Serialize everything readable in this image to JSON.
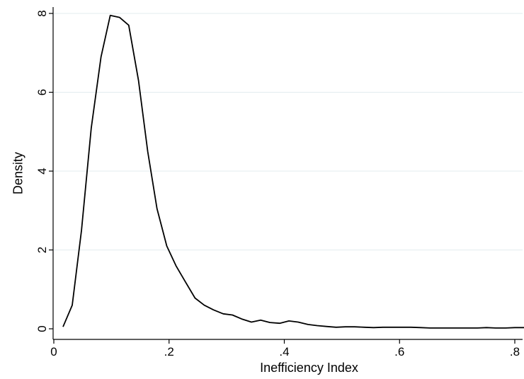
{
  "chart_data": {
    "type": "line",
    "title": "",
    "xlabel": "Inefficiency Index",
    "ylabel": "Density",
    "xlim": [
      0,
      0.82
    ],
    "ylim": [
      0,
      8.2
    ],
    "xticks": [
      0,
      0.2,
      0.4,
      0.6,
      0.8
    ],
    "xtick_labels": [
      "0",
      ".2",
      ".4",
      ".6",
      ".8"
    ],
    "yticks": [
      0,
      2,
      4,
      6,
      8
    ],
    "ytick_labels": [
      "0",
      "2",
      "4",
      "6",
      "8"
    ],
    "grid": "horizontal",
    "legend": "none",
    "colors": {
      "line": "#000000",
      "grid": "#e3ecef",
      "axis": "#000000"
    },
    "series": [
      {
        "x": [
          0.016,
          0.032,
          0.048,
          0.065,
          0.082,
          0.098,
          0.114,
          0.13,
          0.147,
          0.163,
          0.179,
          0.196,
          0.212,
          0.228,
          0.245,
          0.261,
          0.277,
          0.294,
          0.31,
          0.326,
          0.343,
          0.359,
          0.375,
          0.392,
          0.408,
          0.424,
          0.441,
          0.457,
          0.473,
          0.49,
          0.506,
          0.522,
          0.539,
          0.555,
          0.571,
          0.588,
          0.604,
          0.62,
          0.637,
          0.653,
          0.669,
          0.686,
          0.702,
          0.718,
          0.735,
          0.751,
          0.767,
          0.784,
          0.8,
          0.816
        ],
        "y": [
          0.05,
          0.6,
          2.5,
          5.1,
          6.9,
          7.95,
          7.9,
          7.7,
          6.3,
          4.5,
          3.05,
          2.1,
          1.6,
          1.2,
          0.78,
          0.6,
          0.48,
          0.38,
          0.35,
          0.25,
          0.17,
          0.22,
          0.16,
          0.14,
          0.2,
          0.17,
          0.11,
          0.08,
          0.06,
          0.04,
          0.05,
          0.05,
          0.04,
          0.03,
          0.04,
          0.04,
          0.04,
          0.04,
          0.03,
          0.02,
          0.02,
          0.02,
          0.02,
          0.02,
          0.02,
          0.03,
          0.02,
          0.02,
          0.03,
          0.03
        ]
      }
    ]
  }
}
